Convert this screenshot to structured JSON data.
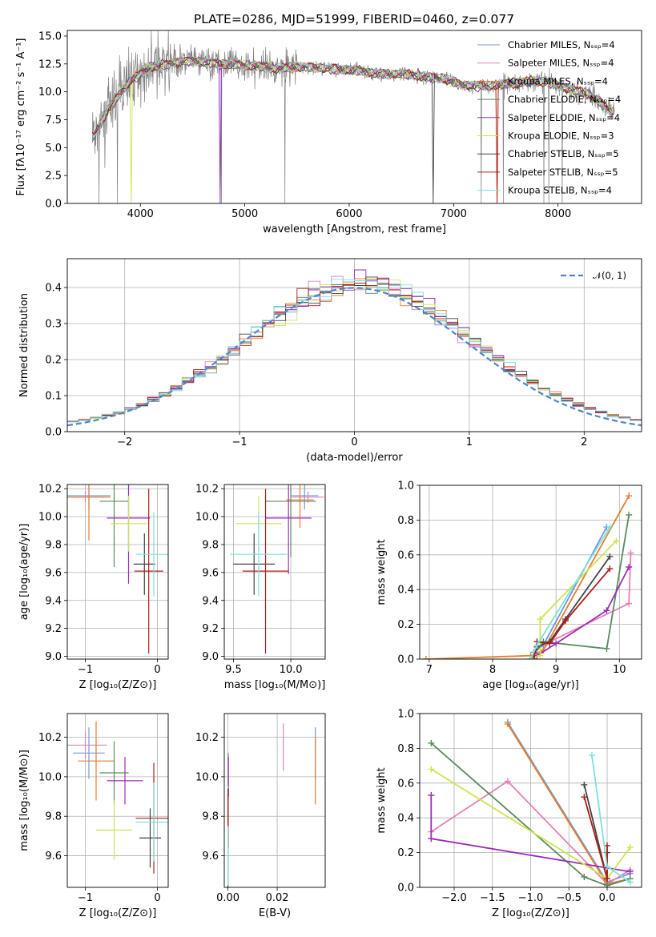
{
  "figure": {
    "title": "PLATE=0286, MJD=51999, FIBERID=0460, z=0.077"
  },
  "colors": {
    "Chabrier MILES": "#6f9bd8",
    "Salpeter MILES": "#e680b4",
    "Kroupa MILES": "#e87d2c",
    "Chabrier ELODIE": "#5a8a5e",
    "Salpeter ELODIE": "#9a2fb8",
    "Kroupa ELODIE": "#cde34f",
    "Chabrier STELIB": "#444444",
    "Salpeter STELIB": "#b01c1c",
    "Kroupa STELIB": "#7fe0e0"
  },
  "chart_data": [
    {
      "type": "line",
      "panel": "spectrum",
      "xlabel": "wavelength [Angstrom, rest frame]",
      "ylabel": "Flux [fλ10⁻¹⁷ erg cm⁻² s⁻¹ A⁻¹]",
      "xlim": [
        3300,
        8800
      ],
      "ylim": [
        0,
        15.5
      ],
      "xticks": [
        "4000",
        "5000",
        "6000",
        "7000",
        "8000"
      ],
      "yticks": [
        "0.0",
        "2.5",
        "5.0",
        "7.5",
        "10.0",
        "12.5",
        "15.0"
      ],
      "legend_position": "top-right",
      "legend": [
        "Chabrier MILES, Nₛₛₚ=4",
        "Salpeter MILES, Nₛₛₚ=4",
        "Kroupa MILES, Nₛₛₚ=4",
        "Chabrier ELODIE, Nₛₛₚ=4",
        "Salpeter ELODIE, Nₛₛₚ=4",
        "Kroupa ELODIE, Nₛₛₚ=3",
        "Chabrier STELIB, Nₛₛₚ=5",
        "Salpeter STELIB, Nₛₛₚ=5",
        "Kroupa STELIB, Nₛₛₚ=4"
      ],
      "continuum": {
        "x": [
          3550,
          3700,
          3900,
          4100,
          4300,
          4500,
          4700,
          4900,
          5100,
          5300,
          5500,
          5700,
          5900,
          6100,
          6300,
          6500,
          6700,
          6900,
          7100,
          7300,
          7500,
          7700,
          7900,
          8100,
          8300,
          8500
        ],
        "y": [
          6.0,
          8.5,
          11.0,
          12.2,
          12.6,
          12.8,
          12.6,
          12.4,
          12.3,
          12.1,
          12.2,
          12.2,
          12.0,
          11.9,
          11.6,
          11.6,
          11.4,
          11.2,
          10.6,
          10.5,
          10.7,
          10.9,
          10.9,
          10.3,
          9.8,
          8.3
        ]
      }
    },
    {
      "type": "line",
      "panel": "residuals",
      "xlabel": "(data-model)/error",
      "ylabel": "Normed distribution",
      "xlim": [
        -2.5,
        2.5
      ],
      "ylim": [
        0,
        0.48
      ],
      "xticks": [
        "−2",
        "−1",
        "0",
        "1",
        "2"
      ],
      "yticks": [
        "0.0",
        "0.1",
        "0.2",
        "0.3",
        "0.4"
      ],
      "gaussian_label": "𝒩(0, 1)",
      "legend_position": "top-right",
      "bin_width": 0.1
    },
    {
      "type": "scatter",
      "panel": "age-vs-Z",
      "xlabel": "Z [log₁₀(Z/Z⊙)]",
      "ylabel": "age  [log₁₀(age/yr)]",
      "xlim": [
        -1.25,
        0.15
      ],
      "ylim": [
        8.98,
        10.23
      ],
      "xticks": [
        "−1",
        "0"
      ],
      "yticks": [
        "9.0",
        "9.2",
        "9.4",
        "9.6",
        "9.8",
        "10.0",
        "10.2"
      ],
      "points": [
        {
          "m": "Chabrier MILES",
          "x": -0.95,
          "y": 10.15,
          "xe": 0.3,
          "ye": 0.1
        },
        {
          "m": "Salpeter MILES",
          "x": -1.0,
          "y": 10.14,
          "xe": 0.28,
          "ye": 0.04
        },
        {
          "m": "Kroupa MILES",
          "x": -0.95,
          "y": 10.14,
          "xe": 0.3,
          "ye": 0.31
        },
        {
          "m": "Chabrier ELODIE",
          "x": -0.6,
          "y": 10.11,
          "xe": 0.2,
          "ye": 0.47
        },
        {
          "m": "Salpeter ELODIE",
          "x": -0.4,
          "y": 9.99,
          "xe": 0.3,
          "ye": 0.47
        },
        {
          "m": "Kroupa ELODIE",
          "x": -0.4,
          "y": 9.95,
          "xe": 0.25,
          "ye": 0.2
        },
        {
          "m": "Chabrier STELIB",
          "x": -0.18,
          "y": 9.66,
          "xe": 0.15,
          "ye": 0.22
        },
        {
          "m": "Salpeter STELIB",
          "x": -0.12,
          "y": 9.61,
          "xe": 0.2,
          "ye": 0.59
        },
        {
          "m": "Kroupa STELIB",
          "x": -0.05,
          "y": 9.73,
          "xe": 0.25,
          "ye": 0.3
        }
      ]
    },
    {
      "type": "scatter",
      "panel": "age-vs-mass",
      "xlabel": "mass [log₁₀(M/M⊙)]",
      "ylabel": "",
      "xlim": [
        9.42,
        10.3
      ],
      "ylim": [
        8.98,
        10.23
      ],
      "xticks": [
        "9.5",
        "10.0"
      ],
      "yticks": [
        "9.0",
        "9.2",
        "9.4",
        "9.6",
        "9.8",
        "10.0",
        "10.2"
      ],
      "points": [
        {
          "m": "Chabrier MILES",
          "x": 10.12,
          "y": 10.15,
          "xe": 0.12,
          "ye": 0.1
        },
        {
          "m": "Salpeter MILES",
          "x": 10.15,
          "y": 10.14,
          "xe": 0.14,
          "ye": 0.04
        },
        {
          "m": "Kroupa MILES",
          "x": 10.08,
          "y": 10.12,
          "xe": 0.12,
          "ye": 0.2
        },
        {
          "m": "Chabrier ELODIE",
          "x": 10.0,
          "y": 10.11,
          "xe": 0.22,
          "ye": 0.4
        },
        {
          "m": "Salpeter ELODIE",
          "x": 9.98,
          "y": 9.99,
          "xe": 0.2,
          "ye": 0.4
        },
        {
          "m": "Kroupa ELODIE",
          "x": 9.72,
          "y": 9.95,
          "xe": 0.2,
          "ye": 0.2
        },
        {
          "m": "Chabrier STELIB",
          "x": 9.68,
          "y": 9.66,
          "xe": 0.18,
          "ye": 0.22
        },
        {
          "m": "Salpeter STELIB",
          "x": 9.78,
          "y": 9.61,
          "xe": 0.2,
          "ye": 0.59
        },
        {
          "m": "Kroupa STELIB",
          "x": 9.72,
          "y": 9.73,
          "xe": 0.25,
          "ye": 0.3
        }
      ]
    },
    {
      "type": "line",
      "panel": "mass-weight-vs-age",
      "xlabel": "age  [log₁₀(age/yr)]",
      "ylabel": "mass weight",
      "xlim": [
        6.85,
        10.35
      ],
      "ylim": [
        0,
        1.0
      ],
      "xticks": [
        "7",
        "8",
        "9",
        "10"
      ],
      "yticks": [
        "0.0",
        "0.2",
        "0.4",
        "0.6",
        "0.8",
        "1.0"
      ],
      "series": [
        {
          "m": "Chabrier MILES",
          "x": [
            8.65,
            8.8,
            9.8
          ],
          "y": [
            0.04,
            0.08,
            0.76
          ]
        },
        {
          "m": "Salpeter MILES",
          "x": [
            8.7,
            8.9,
            10.15,
            10.18
          ],
          "y": [
            0.02,
            0.1,
            0.32,
            0.61
          ]
        },
        {
          "m": "Kroupa MILES",
          "x": [
            6.95,
            8.6,
            8.8,
            10.15
          ],
          "y": [
            0.0,
            0.02,
            0.05,
            0.94
          ]
        },
        {
          "m": "Chabrier ELODIE",
          "x": [
            8.6,
            8.8,
            9.8,
            10.15
          ],
          "y": [
            0.0,
            0.1,
            0.06,
            0.83
          ]
        },
        {
          "m": "Salpeter ELODIE",
          "x": [
            8.7,
            9.0,
            9.8,
            10.15
          ],
          "y": [
            0.02,
            0.09,
            0.28,
            0.53
          ]
        },
        {
          "m": "Kroupa ELODIE",
          "x": [
            8.6,
            8.75,
            8.75,
            9.95
          ],
          "y": [
            0.0,
            0.02,
            0.23,
            0.68
          ]
        },
        {
          "m": "Chabrier STELIB",
          "x": [
            8.6,
            8.7,
            8.9,
            9.15,
            9.85
          ],
          "y": [
            0.0,
            0.07,
            0.1,
            0.23,
            0.59
          ]
        },
        {
          "m": "Salpeter STELIB",
          "x": [
            8.65,
            8.7,
            8.9,
            9.15,
            9.85
          ],
          "y": [
            0.0,
            0.1,
            0.09,
            0.22,
            0.52
          ]
        },
        {
          "m": "Kroupa STELIB",
          "x": [
            8.6,
            8.7,
            9.85
          ],
          "y": [
            0.0,
            0.08,
            0.76
          ]
        }
      ]
    },
    {
      "type": "scatter",
      "panel": "mass-vs-Z",
      "xlabel": "Z [log₁₀(Z/Z⊙)]",
      "ylabel": "mass [log₁₀(M/M⊙)]",
      "xlim": [
        -1.25,
        0.15
      ],
      "ylim": [
        9.44,
        10.32
      ],
      "xticks": [
        "−1",
        "0"
      ],
      "yticks": [
        "9.6",
        "9.8",
        "10.0",
        "10.2"
      ],
      "points": [
        {
          "m": "Chabrier MILES",
          "x": -0.95,
          "y": 10.12,
          "xe": 0.22,
          "ye": 0.13
        },
        {
          "m": "Salpeter MILES",
          "x": -1.0,
          "y": 10.16,
          "xe": 0.3,
          "ye": 0.07
        },
        {
          "m": "Kroupa MILES",
          "x": -0.85,
          "y": 10.08,
          "xe": 0.25,
          "ye": 0.2
        },
        {
          "m": "Chabrier ELODIE",
          "x": -0.6,
          "y": 10.02,
          "xe": 0.2,
          "ye": 0.16
        },
        {
          "m": "Salpeter ELODIE",
          "x": -0.45,
          "y": 9.98,
          "xe": 0.25,
          "ye": 0.12
        },
        {
          "m": "Kroupa ELODIE",
          "x": -0.6,
          "y": 9.73,
          "xe": 0.25,
          "ye": 0.15
        },
        {
          "m": "Chabrier STELIB",
          "x": -0.1,
          "y": 9.69,
          "xe": 0.15,
          "ye": 0.15
        },
        {
          "m": "Salpeter STELIB",
          "x": -0.05,
          "y": 9.79,
          "xe": 0.25,
          "ye": 0.28
        },
        {
          "m": "Kroupa STELIB",
          "x": -0.05,
          "y": 9.77,
          "xe": 0.25,
          "ye": 0.2
        }
      ]
    },
    {
      "type": "scatter",
      "panel": "mass-vs-EBV",
      "xlabel": "E(B-V)",
      "ylabel": "",
      "xlim": [
        -0.0015,
        0.0395
      ],
      "ylim": [
        9.44,
        10.32
      ],
      "xticks": [
        "0.00",
        "0.02"
      ],
      "yticks": [
        "9.6",
        "9.8",
        "10.0",
        "10.2"
      ],
      "points": [
        {
          "m": "Chabrier MILES",
          "x": 0.0355,
          "y": 10.12,
          "ye": 0.13
        },
        {
          "m": "Salpeter MILES",
          "x": 0.0225,
          "y": 10.15,
          "ye": 0.12
        },
        {
          "m": "Kroupa MILES",
          "x": 0.0355,
          "y": 10.03,
          "ye": 0.17
        },
        {
          "m": "Chabrier ELODIE",
          "x": 0.0001,
          "y": 10.02,
          "ye": 0.1
        },
        {
          "m": "Salpeter ELODIE",
          "x": 0.0002,
          "y": 10.0,
          "ye": 0.1
        },
        {
          "m": "Kroupa ELODIE",
          "x": 0.0,
          "y": 9.75,
          "ye": 0.2
        },
        {
          "m": "Chabrier STELIB",
          "x": 0.0,
          "y": 9.69,
          "ye": 0.25
        },
        {
          "m": "Salpeter STELIB",
          "x": 0.0001,
          "y": 9.79,
          "ye": 0.15
        },
        {
          "m": "Kroupa STELIB",
          "x": 0.0,
          "y": 9.6,
          "ye": 0.15
        }
      ]
    },
    {
      "type": "line",
      "panel": "mass-weight-vs-Z",
      "xlabel": "Z [log₁₀(Z/Z⊙)]",
      "ylabel": "mass weight",
      "xlim": [
        -2.45,
        0.45
      ],
      "ylim": [
        0,
        1.0
      ],
      "xticks": [
        "−2.0",
        "−1.5",
        "−1.0",
        "−0.5",
        "0.0"
      ],
      "yticks": [
        "0.0",
        "0.2",
        "0.4",
        "0.6",
        "0.8",
        "1.0"
      ],
      "series": [
        {
          "m": "Chabrier MILES",
          "x": [
            -1.3,
            0.0,
            0.3
          ],
          "y": [
            0.95,
            0.03,
            0.08
          ]
        },
        {
          "m": "Salpeter MILES",
          "x": [
            -2.3,
            -1.3,
            0.0,
            0.3
          ],
          "y": [
            0.32,
            0.61,
            0.02,
            0.1
          ]
        },
        {
          "m": "Kroupa MILES",
          "x": [
            -1.3,
            0.0,
            0.3
          ],
          "y": [
            0.94,
            0.02,
            0.05
          ]
        },
        {
          "m": "Chabrier ELODIE",
          "x": [
            -2.3,
            -0.3,
            0.0,
            0.3
          ],
          "y": [
            0.83,
            0.06,
            0.01,
            0.05
          ]
        },
        {
          "m": "Salpeter ELODIE",
          "x": [
            -2.3,
            -2.3,
            0.3
          ],
          "y": [
            0.53,
            0.28,
            0.09
          ]
        },
        {
          "m": "Kroupa ELODIE",
          "x": [
            -2.3,
            0.0,
            0.3
          ],
          "y": [
            0.68,
            0.05,
            0.23
          ]
        },
        {
          "m": "Chabrier STELIB",
          "x": [
            -0.3,
            0.0,
            0.0
          ],
          "y": [
            0.59,
            0.05,
            0.2
          ]
        },
        {
          "m": "Salpeter STELIB",
          "x": [
            -0.3,
            0.0,
            0.0
          ],
          "y": [
            0.52,
            0.05,
            0.24
          ]
        },
        {
          "m": "Kroupa STELIB",
          "x": [
            -0.2,
            0.0,
            0.3
          ],
          "y": [
            0.76,
            0.12,
            0.03
          ]
        }
      ]
    }
  ]
}
